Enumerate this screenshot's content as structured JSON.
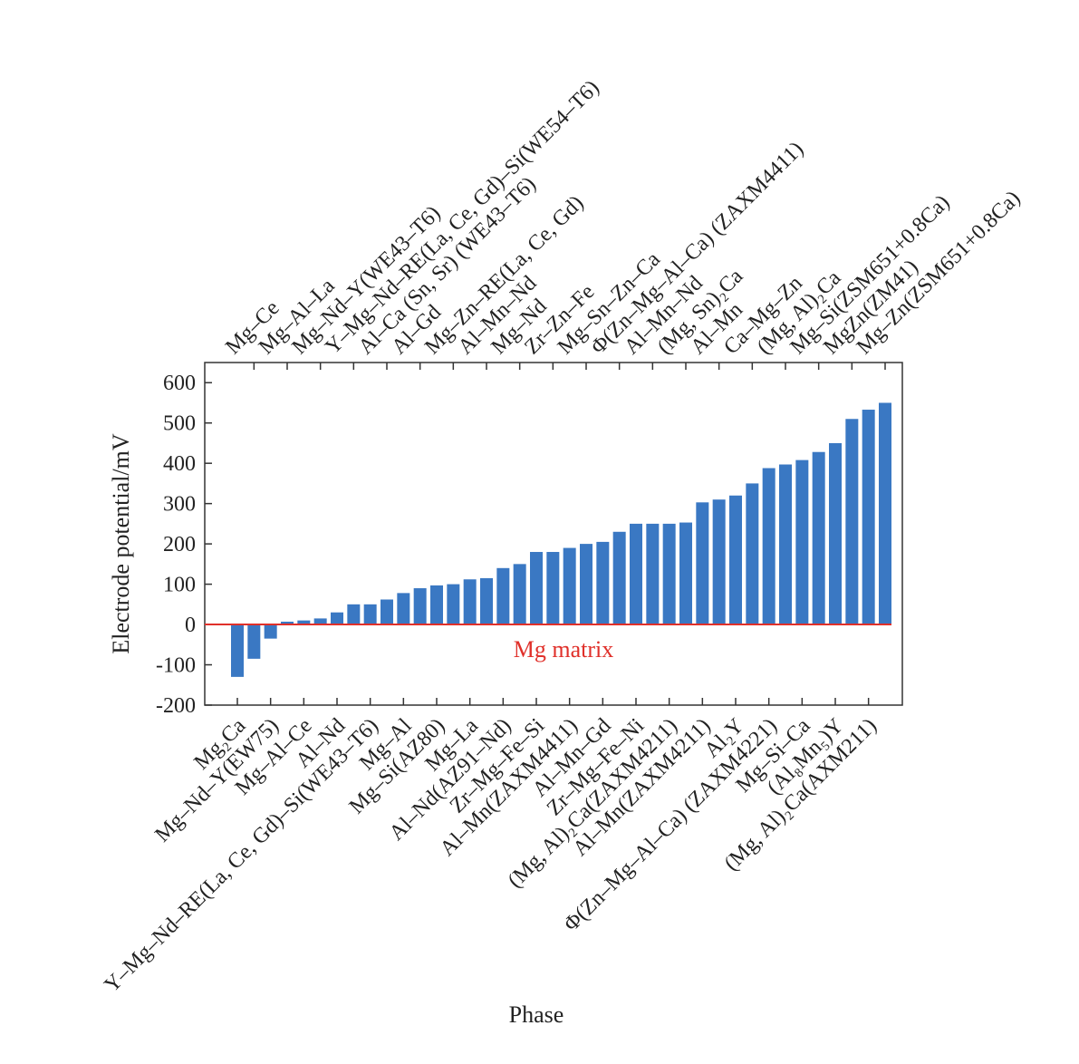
{
  "chart_data": {
    "type": "bar",
    "y_label": "Electrode potential/mV",
    "x_label": "Phase",
    "annotation": "Mg matrix",
    "color": "#3a78c3",
    "baseline_color": "#e0302a",
    "ylim": [
      -200,
      650
    ],
    "yticks": [
      -200,
      -100,
      0,
      100,
      200,
      300,
      400,
      500,
      600
    ],
    "categories": [
      "Mg₂Ca",
      "Mg–Ce",
      "Mg–Nd–Y(EW75)",
      "Mg–Al–La",
      "Mg–Al–Ce",
      "Mg–Nd–Y(WE43–T6)",
      "Al–Nd",
      "Y–Mg–Nd–RE(La, Ce, Gd)–Si(WE54–T6)",
      "Y–Mg–Nd–RE(La, Ce, Gd)–Si(WE43–T6)",
      "Al–Ca (Sn, Sr) (WE43–T6)",
      "Mg–Al",
      "Al–Gd",
      "Mg–Si(AZ80)",
      "Mg–Zn–RE(La, Ce, Gd)",
      "Mg–La",
      "Al–Mn–Nd",
      "Al–Nd(AZ91–Nd)",
      "Mg–Nd",
      "Zr–Mg–Fe–Si",
      "Zr–Zn–Fe",
      "Al–Mn(ZAXM4411)",
      "Mg–Sn–Zn–Ca",
      "Al–Mn–Gd",
      "Φ(Zn–Mg–Al–Ca) (ZAXM4411)",
      "Zr–Mg–Fe–Ni",
      "Al–Mn–Nd",
      "(Mg, Al)₂Ca(ZAXM4211)",
      "(Mg, Sn)₂Ca",
      "Al–Mn(ZAXM4211)",
      "Al–Mn",
      "Al₂Y",
      "Ca–Mg–Zn",
      "Φ(Zn–Mg–Al–Ca) (ZAXM4221)",
      "(Mg, Al)₂Ca",
      "Mg–Si–Ca",
      "Mg–Si(ZSM651+0.8Ca)",
      "(Al₈Mn₅)Y",
      "MgZn(ZM41)",
      "(Mg, Al)₂Ca(AXM211)",
      "Mg–Zn(ZSM651+0.8Ca)"
    ],
    "values": [
      -130,
      -85,
      -35,
      7,
      10,
      15,
      30,
      50,
      50,
      62,
      78,
      90,
      97,
      100,
      112,
      115,
      140,
      150,
      180,
      180,
      190,
      200,
      205,
      230,
      250,
      250,
      250,
      253,
      303,
      310,
      320,
      350,
      388,
      397,
      408,
      428,
      450,
      510,
      533,
      550
    ]
  }
}
